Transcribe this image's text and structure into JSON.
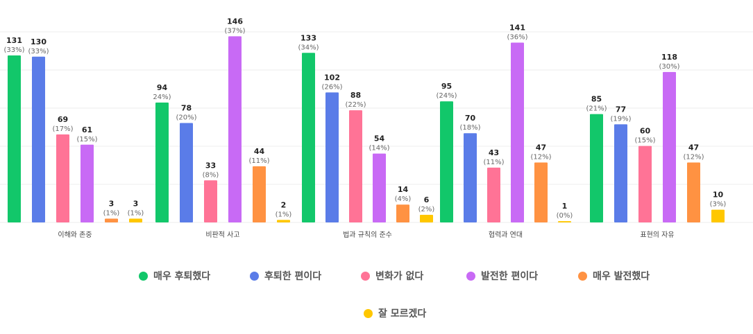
{
  "chart_data": {
    "type": "bar",
    "categories": [
      "이해와 존중",
      "비판적 사고",
      "법과 규칙의 준수",
      "협력과 연대",
      "표현의 자유"
    ],
    "series": [
      {
        "name": "매우 후퇴했다",
        "color": "#12c76a",
        "values": [
          131,
          94,
          133,
          95,
          85
        ],
        "labels": [
          "(33%)",
          "24%)",
          "(34%)",
          "(24%)",
          "(21%)"
        ]
      },
      {
        "name": "후퇴한 편이다",
        "color": "#5a7ce8",
        "values": [
          130,
          78,
          102,
          70,
          77
        ],
        "labels": [
          "(33%)",
          "(20%)",
          "(26%)",
          "(18%)",
          "(19%)"
        ]
      },
      {
        "name": "변화가 없다",
        "color": "#ff7396",
        "values": [
          69,
          33,
          88,
          43,
          60
        ],
        "labels": [
          "(17%)",
          "(8%)",
          "(22%)",
          "(11%)",
          "(15%)"
        ]
      },
      {
        "name": "발전한 편이다",
        "color": "#c86af5",
        "values": [
          61,
          146,
          54,
          141,
          118
        ],
        "labels": [
          "(15%)",
          "(37%)",
          "(14%)",
          "(36%)",
          "(30%)"
        ]
      },
      {
        "name": "매우 발전했다",
        "color": "#ff9242",
        "values": [
          3,
          44,
          14,
          47,
          47
        ],
        "labels": [
          "(1%)",
          "(11%)",
          "(4%)",
          "(12%)",
          "(12%)"
        ]
      },
      {
        "name": "잘 모르겠다",
        "color": "#ffc700",
        "values": [
          3,
          2,
          6,
          1,
          10
        ],
        "labels": [
          "(1%)",
          "(1%)",
          "(2%)",
          "(0%)",
          "(3%)"
        ]
      }
    ],
    "grid": true,
    "legend_position": "bottom"
  }
}
